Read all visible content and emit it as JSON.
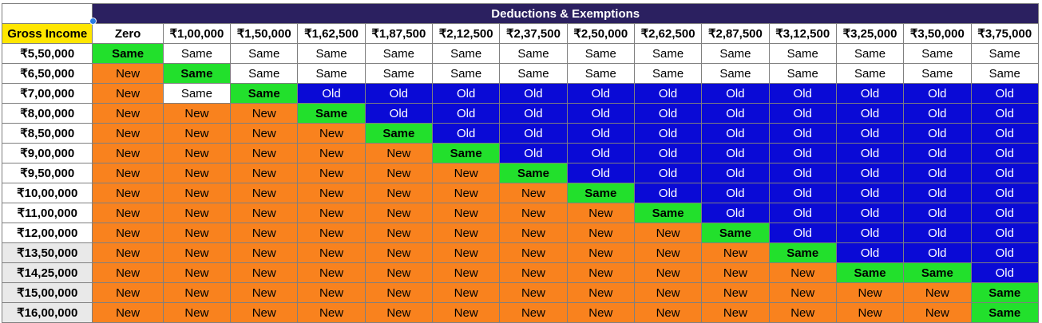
{
  "table": {
    "banner": "Deductions & Exemptions",
    "gross_income_label": "Gross Income",
    "deductions": [
      "Zero",
      "₹1,00,000",
      "₹1,50,000",
      "₹1,62,500",
      "₹1,87,500",
      "₹2,12,500",
      "₹2,37,500",
      "₹2,50,000",
      "₹2,62,500",
      "₹2,87,500",
      "₹3,12,500",
      "₹3,25,000",
      "₹3,50,000",
      "₹3,75,000"
    ],
    "rows": [
      {
        "income": "₹5,50,000",
        "cells": [
          "GSame",
          "Same",
          "Same",
          "Same",
          "Same",
          "Same",
          "Same",
          "Same",
          "Same",
          "Same",
          "Same",
          "Same",
          "Same",
          "Same"
        ]
      },
      {
        "income": "₹6,50,000",
        "cells": [
          "New",
          "GSame",
          "Same",
          "Same",
          "Same",
          "Same",
          "Same",
          "Same",
          "Same",
          "Same",
          "Same",
          "Same",
          "Same",
          "Same"
        ]
      },
      {
        "income": "₹7,00,000",
        "cells": [
          "New",
          "Same",
          "GSame",
          "Old",
          "Old",
          "Old",
          "Old",
          "Old",
          "Old",
          "Old",
          "Old",
          "Old",
          "Old",
          "Old"
        ]
      },
      {
        "income": "₹8,00,000",
        "cells": [
          "New",
          "New",
          "New",
          "GSame",
          "Old",
          "Old",
          "Old",
          "Old",
          "Old",
          "Old",
          "Old",
          "Old",
          "Old",
          "Old"
        ]
      },
      {
        "income": "₹8,50,000",
        "cells": [
          "New",
          "New",
          "New",
          "New",
          "GSame",
          "Old",
          "Old",
          "Old",
          "Old",
          "Old",
          "Old",
          "Old",
          "Old",
          "Old"
        ]
      },
      {
        "income": "₹9,00,000",
        "cells": [
          "New",
          "New",
          "New",
          "New",
          "New",
          "GSame",
          "Old",
          "Old",
          "Old",
          "Old",
          "Old",
          "Old",
          "Old",
          "Old"
        ]
      },
      {
        "income": "₹9,50,000",
        "cells": [
          "New",
          "New",
          "New",
          "New",
          "New",
          "New",
          "GSame",
          "Old",
          "Old",
          "Old",
          "Old",
          "Old",
          "Old",
          "Old"
        ]
      },
      {
        "income": "₹10,00,000",
        "cells": [
          "New",
          "New",
          "New",
          "New",
          "New",
          "New",
          "New",
          "GSame",
          "Old",
          "Old",
          "Old",
          "Old",
          "Old",
          "Old"
        ]
      },
      {
        "income": "₹11,00,000",
        "cells": [
          "New",
          "New",
          "New",
          "New",
          "New",
          "New",
          "New",
          "New",
          "GSame",
          "Old",
          "Old",
          "Old",
          "Old",
          "Old"
        ]
      },
      {
        "income": "₹12,00,000",
        "cells": [
          "New",
          "New",
          "New",
          "New",
          "New",
          "New",
          "New",
          "New",
          "New",
          "GSame",
          "Old",
          "Old",
          "Old",
          "Old"
        ]
      },
      {
        "income": "₹13,50,000",
        "cells": [
          "New",
          "New",
          "New",
          "New",
          "New",
          "New",
          "New",
          "New",
          "New",
          "New",
          "GSame",
          "Old",
          "Old",
          "Old"
        ]
      },
      {
        "income": "₹14,25,000",
        "cells": [
          "New",
          "New",
          "New",
          "New",
          "New",
          "New",
          "New",
          "New",
          "New",
          "New",
          "New",
          "GSame",
          "GSame",
          "Old"
        ]
      },
      {
        "income": "₹15,00,000",
        "cells": [
          "New",
          "New",
          "New",
          "New",
          "New",
          "New",
          "New",
          "New",
          "New",
          "New",
          "New",
          "New",
          "New",
          "GSame"
        ]
      },
      {
        "income": "₹16,00,000",
        "cells": [
          "New",
          "New",
          "New",
          "New",
          "New",
          "New",
          "New",
          "New",
          "New",
          "New",
          "New",
          "New",
          "New",
          "GSame"
        ]
      }
    ]
  },
  "colors": {
    "banner": "#2b2060",
    "gross_income": "#ffe600",
    "same_green": "#22e02c",
    "new_orange": "#f9821e",
    "old_blue": "#0a0ad6"
  }
}
